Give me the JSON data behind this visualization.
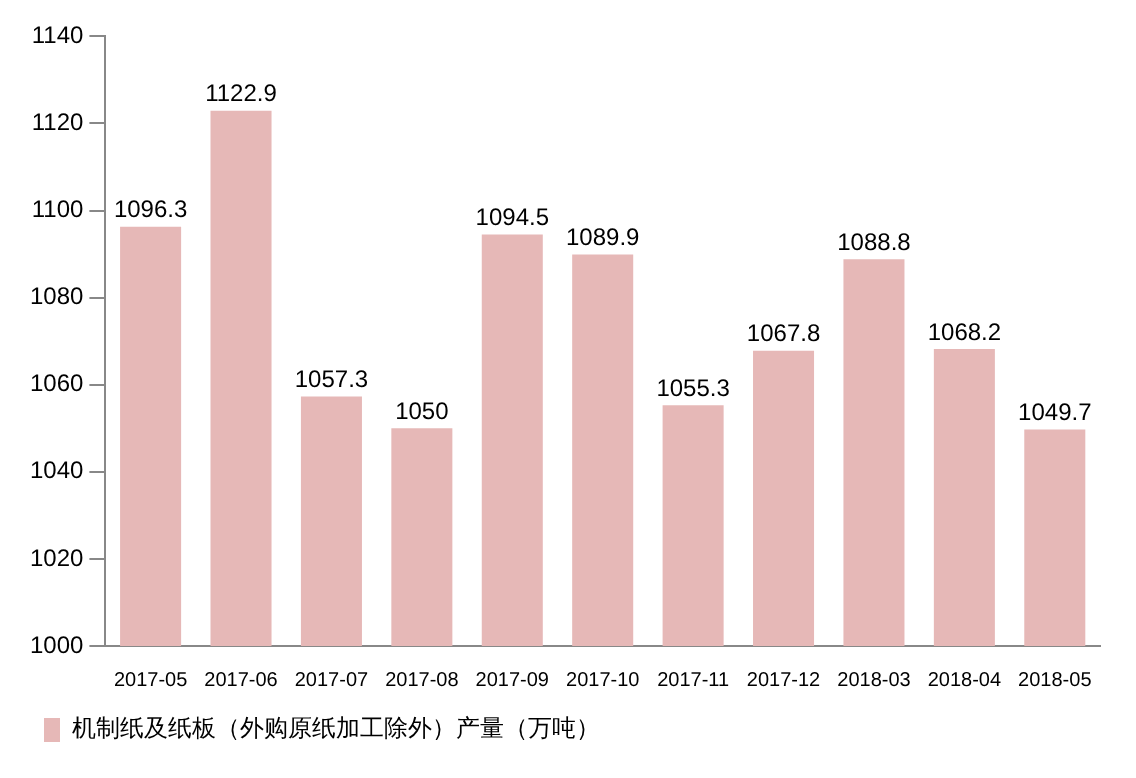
{
  "chart_data": {
    "type": "bar",
    "categories": [
      "2017-05",
      "2017-06",
      "2017-07",
      "2017-08",
      "2017-09",
      "2017-10",
      "2017-11",
      "2017-12",
      "2018-03",
      "2018-04",
      "2018-05"
    ],
    "series": [
      {
        "name": "机制纸及纸板（外购原纸加工除外）产量（万吨）",
        "color": "#e6b8b7",
        "values": [
          1096.3,
          1122.9,
          1057.3,
          1050,
          1094.5,
          1089.9,
          1055.3,
          1067.8,
          1088.8,
          1068.2,
          1049.7
        ]
      }
    ],
    "ylim": [
      1000,
      1140
    ],
    "yticks": [
      1000,
      1020,
      1040,
      1060,
      1080,
      1100,
      1120,
      1140
    ],
    "grid": false,
    "legend": "bottom",
    "data_labels": true
  }
}
